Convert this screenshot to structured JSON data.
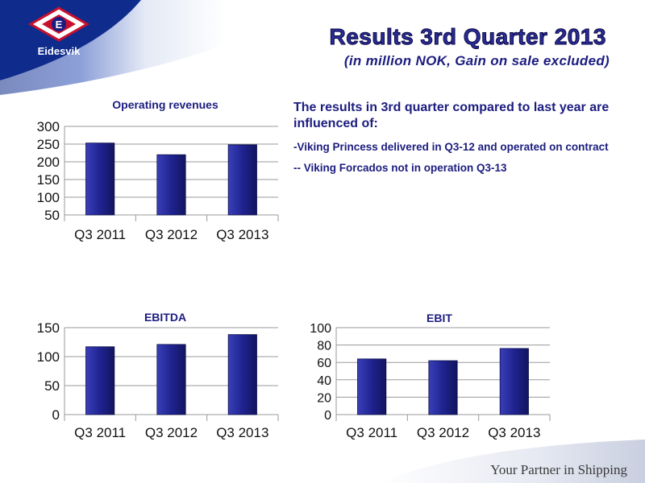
{
  "brand": {
    "name": "Eidesvik",
    "logo_letter": "E",
    "tagline": "Your Partner in Shipping",
    "colors": {
      "navy": "#1c1c80",
      "red": "#c8102e",
      "bar": "#1f2390"
    }
  },
  "header": {
    "title": "Results 3rd Quarter 2013",
    "subtitle": "(in million NOK, Gain on sale excluded)"
  },
  "notes": {
    "heading": "The results in 3rd quarter compared to last year are influenced of:",
    "items": [
      "-Viking Princess delivered in Q3-12 and operated on contract",
      "-- Viking Forcados not in operation Q3-13"
    ]
  },
  "chart_data": [
    {
      "type": "bar",
      "title": "Operating revenues",
      "categories": [
        "Q3 2011",
        "Q3 2012",
        "Q3 2013"
      ],
      "values": [
        253,
        220,
        248
      ],
      "ylim": [
        50,
        300
      ],
      "yticks": [
        "300",
        "250",
        "200",
        "150",
        "100",
        "50"
      ],
      "grid": true
    },
    {
      "type": "bar",
      "title": "EBITDA",
      "categories": [
        "Q3 2011",
        "Q3 2012",
        "Q3 2013"
      ],
      "values": [
        117,
        121,
        138
      ],
      "ylim": [
        0,
        150
      ],
      "yticks": [
        "150",
        "100",
        "50",
        "0"
      ],
      "grid": true
    },
    {
      "type": "bar",
      "title": "EBIT",
      "categories": [
        "Q3 2011",
        "Q3 2012",
        "Q3 2013"
      ],
      "values": [
        64,
        62,
        76
      ],
      "ylim": [
        0,
        100
      ],
      "yticks": [
        "100",
        "80",
        "60",
        "40",
        "20",
        "0"
      ],
      "grid": true
    }
  ]
}
